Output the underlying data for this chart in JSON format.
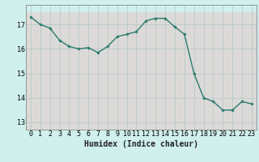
{
  "x": [
    0,
    1,
    2,
    3,
    4,
    5,
    6,
    7,
    8,
    9,
    10,
    11,
    12,
    13,
    14,
    15,
    16,
    17,
    18,
    19,
    20,
    21,
    22,
    23
  ],
  "y": [
    17.3,
    17.0,
    16.85,
    16.35,
    16.1,
    16.0,
    16.05,
    15.85,
    16.1,
    16.5,
    16.6,
    16.7,
    17.15,
    17.25,
    17.25,
    16.9,
    16.6,
    15.0,
    14.0,
    13.85,
    13.5,
    13.5,
    13.85,
    13.75
  ],
  "line_color": "#2a7a6f",
  "marker": "D",
  "marker_size": 1.8,
  "bg_color": "#cff0ec",
  "hband_color": "#e8c8c8",
  "vgrid_color": "#b0c8c4",
  "xlabel": "Humidex (Indice chaleur)",
  "ylabel": "",
  "ylim": [
    12.7,
    17.8
  ],
  "xlim": [
    -0.5,
    23.5
  ],
  "yticks": [
    13,
    14,
    15,
    16,
    17
  ],
  "xticks": [
    0,
    1,
    2,
    3,
    4,
    5,
    6,
    7,
    8,
    9,
    10,
    11,
    12,
    13,
    14,
    15,
    16,
    17,
    18,
    19,
    20,
    21,
    22,
    23
  ],
  "xlabel_fontsize": 7.0,
  "tick_fontsize": 6.0,
  "spine_color": "#888888",
  "hband_yticks": [
    13,
    14,
    15,
    16,
    17
  ]
}
